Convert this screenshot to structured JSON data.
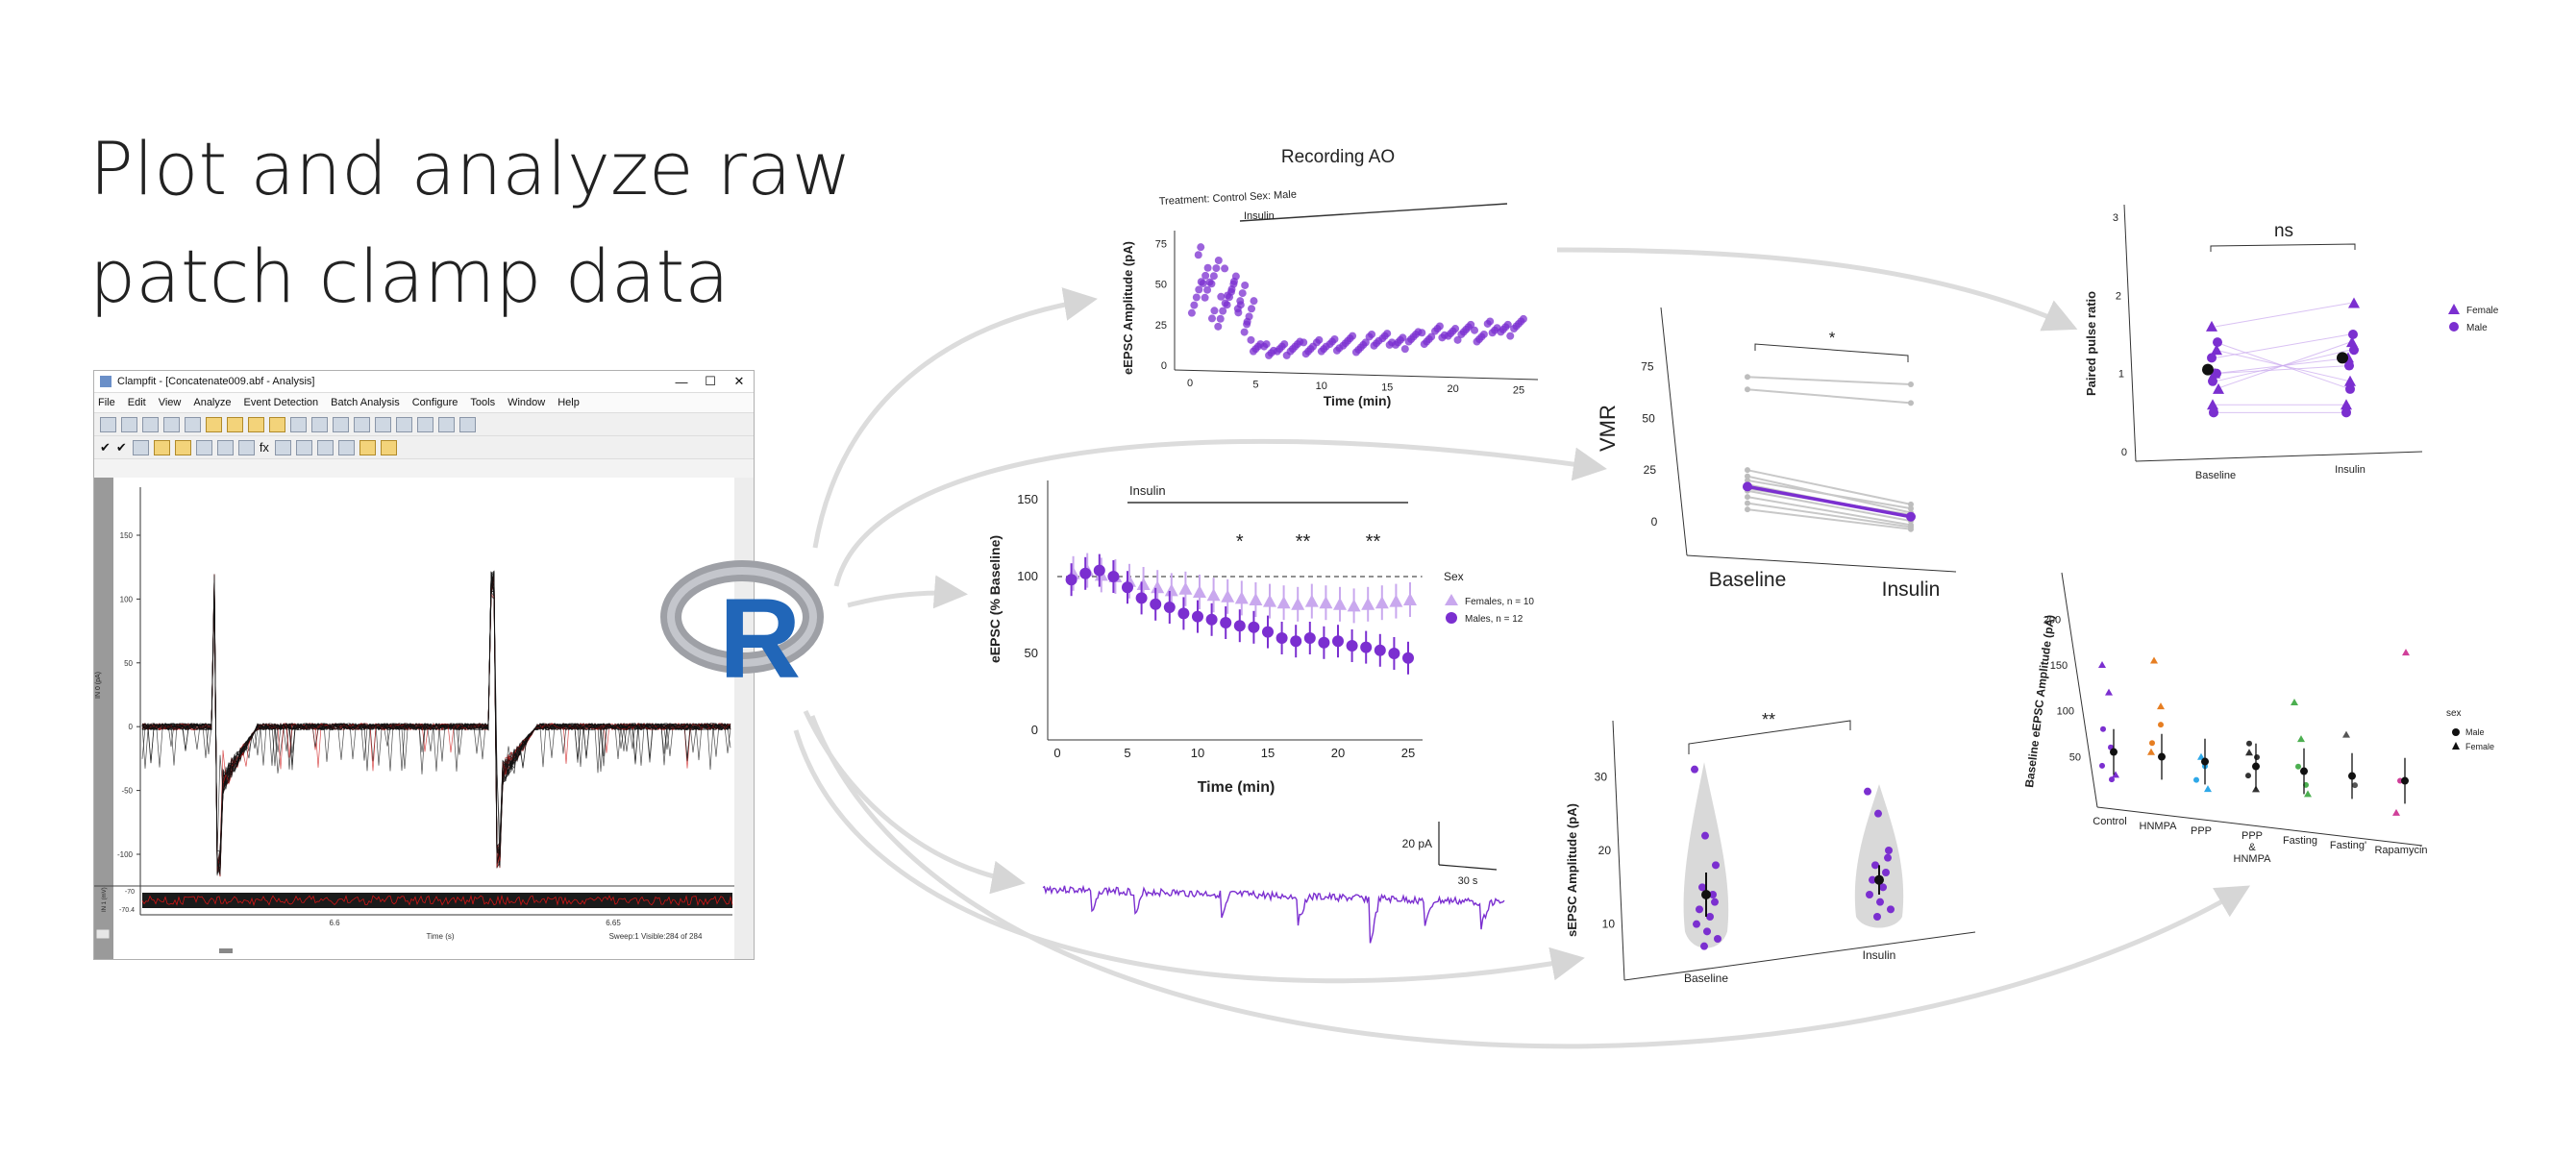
{
  "headline": [
    "Plot and analyze raw",
    "patch clamp data"
  ],
  "clampfit": {
    "title": "Clampfit - [Concatenate009.abf - Analysis]",
    "window_buttons": [
      "—",
      "☐",
      "✕"
    ],
    "menu": [
      "File",
      "Edit",
      "View",
      "Analyze",
      "Event Detection",
      "Batch Analysis",
      "Configure",
      "Tools",
      "Window",
      "Help"
    ],
    "y_ticks": [
      "150",
      "100",
      "50",
      "0",
      "-50",
      "-100"
    ],
    "y_label": "IN 0 (pA)",
    "lower_ticks": [
      "-70",
      "-70.4"
    ],
    "lower_label": "IN 1 (mV)",
    "x_ticks": [
      "6.6",
      "6.65"
    ],
    "x_label": "Time (s)",
    "status": "Sweep:1  Visible:284 of 284"
  },
  "charts": {
    "recording_ao": {
      "title": "Recording AO",
      "treatment_label": "Treatment: Control   Sex: Male",
      "bar_label": "Insulin",
      "ylabel": "eEPSC Amplitude (pA)",
      "xlabel": "Time (min)",
      "y_ticks": [
        "0",
        "25",
        "50",
        "75"
      ],
      "x_ticks": [
        "0",
        "5",
        "10",
        "15",
        "20",
        "25"
      ]
    },
    "summary": {
      "bar_label": "Insulin",
      "ylabel": "eEPSC (% Baseline)",
      "xlabel": "Time (min)",
      "y_ticks": [
        "0",
        "50",
        "100",
        "150"
      ],
      "x_ticks": [
        "0",
        "5",
        "10",
        "15",
        "20",
        "25"
      ],
      "stars": [
        "*",
        "**",
        "**"
      ],
      "legend_title": "Sex",
      "legend": [
        "Females, n = 10",
        "Males, n = 12"
      ]
    },
    "vmr": {
      "ylabel": "VMR",
      "star": "*",
      "y_ticks": [
        "0",
        "25",
        "50",
        "75"
      ],
      "x_cats": [
        "Baseline",
        "Insulin"
      ]
    },
    "ppr": {
      "ylabel": "Paired pulse ratio",
      "sig": "ns",
      "y_ticks": [
        "0",
        "1",
        "2",
        "3"
      ],
      "x_cats": [
        "Baseline",
        "Insulin"
      ],
      "legend": [
        "Female",
        "Male"
      ]
    },
    "trace": {
      "scale_y": "20 pA",
      "scale_x": "30 s"
    },
    "sepsc": {
      "ylabel": "sEPSC Amplitude (pA)",
      "sig": "**",
      "y_ticks": [
        "10",
        "20",
        "30"
      ],
      "x_cats": [
        "Baseline",
        "Insulin"
      ]
    },
    "baseline": {
      "ylabel": "Baseline eEPSC Amplitude (pA)",
      "y_ticks": [
        "50",
        "100",
        "150",
        "200"
      ],
      "x_cats": [
        "Control",
        "HNMPA",
        "PPP",
        "PPP\n&\nHNMPA",
        "Fasting",
        "Fasting'",
        "Rapamycin"
      ],
      "legend_title": "sex",
      "legend": [
        "Male",
        "Female"
      ]
    }
  },
  "chart_data": [
    {
      "type": "scatter",
      "title": "Recording AO",
      "xlabel": "Time (min)",
      "ylabel": "eEPSC Amplitude (pA)",
      "xlim": [
        0,
        25
      ],
      "ylim": [
        0,
        80
      ],
      "series": [
        {
          "name": "eEPSC",
          "x": [
            0.5,
            1,
            1.5,
            2,
            2.5,
            3,
            3.5,
            4,
            4.5,
            5,
            6,
            7,
            8,
            9,
            10,
            11,
            12,
            13,
            14,
            15,
            16,
            17,
            18,
            19,
            20,
            21,
            22,
            23,
            24,
            25
          ],
          "y": [
            45,
            60,
            40,
            55,
            35,
            50,
            42,
            38,
            30,
            12,
            10,
            9,
            11,
            10,
            12,
            13,
            14,
            12,
            15,
            16,
            14,
            18,
            17,
            20,
            19,
            22,
            18,
            24,
            21,
            25
          ]
        }
      ]
    },
    {
      "type": "line",
      "xlabel": "Time (min)",
      "ylabel": "eEPSC (% Baseline)",
      "xlim": [
        0,
        25
      ],
      "ylim": [
        0,
        150
      ],
      "x": [
        1,
        2,
        3,
        4,
        5,
        6,
        7,
        8,
        9,
        10,
        11,
        12,
        13,
        14,
        15,
        16,
        17,
        18,
        19,
        20,
        21,
        22,
        23,
        24,
        25
      ],
      "series": [
        {
          "name": "Females, n = 10",
          "values": [
            102,
            104,
            101,
            100,
            97,
            95,
            93,
            91,
            92,
            90,
            88,
            87,
            86,
            85,
            84,
            83,
            82,
            84,
            83,
            82,
            81,
            82,
            83,
            84,
            85
          ]
        },
        {
          "name": "Males, n = 12",
          "values": [
            98,
            102,
            104,
            100,
            93,
            86,
            82,
            80,
            76,
            74,
            72,
            70,
            68,
            67,
            64,
            60,
            58,
            60,
            57,
            58,
            55,
            54,
            52,
            50,
            47
          ]
        }
      ]
    },
    {
      "type": "line",
      "ylabel": "VMR",
      "categories": [
        "Baseline",
        "Insulin"
      ],
      "ylim": [
        0,
        85
      ],
      "series": [
        {
          "values": [
            70,
            72
          ]
        },
        {
          "values": [
            64,
            63
          ]
        },
        {
          "values": [
            25,
            14
          ]
        },
        {
          "values": [
            22,
            10
          ]
        },
        {
          "values": [
            20,
            12
          ]
        },
        {
          "values": [
            18,
            8
          ]
        },
        {
          "values": [
            15,
            6
          ]
        },
        {
          "values": [
            12,
            4
          ]
        },
        {
          "values": [
            9,
            3
          ]
        },
        {
          "values": [
            6,
            2
          ]
        },
        {
          "values": [
            16,
            9
          ]
        }
      ]
    },
    {
      "type": "scatter",
      "ylabel": "Paired pulse ratio",
      "categories": [
        "Baseline",
        "Insulin"
      ],
      "ylim": [
        0,
        3
      ],
      "series": [
        {
          "name": "Female",
          "x": [
            0,
            0,
            0,
            0,
            0,
            1,
            1,
            1,
            1,
            1
          ],
          "y": [
            1.6,
            0.8,
            1.3,
            1.0,
            0.6,
            1.9,
            1.4,
            0.9,
            1.2,
            0.6
          ]
        },
        {
          "name": "Male",
          "x": [
            0,
            0,
            0,
            0,
            0,
            1,
            1,
            1,
            1,
            1
          ],
          "y": [
            1.2,
            1.0,
            0.9,
            1.4,
            0.5,
            1.5,
            1.1,
            1.3,
            0.8,
            0.5
          ]
        }
      ]
    },
    {
      "type": "scatter",
      "ylabel": "sEPSC Amplitude (pA)",
      "categories": [
        "Baseline",
        "Insulin"
      ],
      "ylim": [
        5,
        35
      ],
      "series": [
        {
          "x": [
            0,
            0,
            0,
            0,
            0,
            0,
            0,
            0,
            0,
            0,
            0,
            0
          ],
          "y": [
            31,
            22,
            18,
            15,
            14,
            12,
            11,
            10,
            9,
            8,
            7,
            13
          ]
        },
        {
          "x": [
            1,
            1,
            1,
            1,
            1,
            1,
            1,
            1,
            1,
            1,
            1,
            1
          ],
          "y": [
            28,
            25,
            20,
            18,
            17,
            16,
            15,
            14,
            13,
            12,
            11,
            19
          ]
        }
      ]
    },
    {
      "type": "scatter",
      "ylabel": "Baseline eEPSC Amplitude (pA)",
      "categories": [
        "Control",
        "HNMPA",
        "PPP",
        "PPP & HNMPA",
        "Fasting",
        "Fasting'",
        "Rapamycin"
      ],
      "ylim": [
        0,
        215
      ],
      "series": [
        {
          "name": "Male",
          "x": [
            0,
            0,
            0,
            0,
            1,
            1,
            2,
            2,
            3,
            3,
            3,
            4,
            4,
            5,
            6
          ],
          "y": [
            40,
            60,
            80,
            25,
            70,
            90,
            35,
            50,
            45,
            65,
            80,
            40,
            60,
            45,
            55
          ]
        },
        {
          "name": "Female",
          "x": [
            0,
            0,
            0,
            1,
            1,
            1,
            2,
            2,
            3,
            3,
            4,
            4,
            4,
            5,
            6,
            6
          ],
          "y": [
            150,
            120,
            30,
            160,
            110,
            60,
            60,
            25,
            70,
            30,
            130,
            90,
            30,
            100,
            195,
            20
          ]
        }
      ]
    }
  ]
}
